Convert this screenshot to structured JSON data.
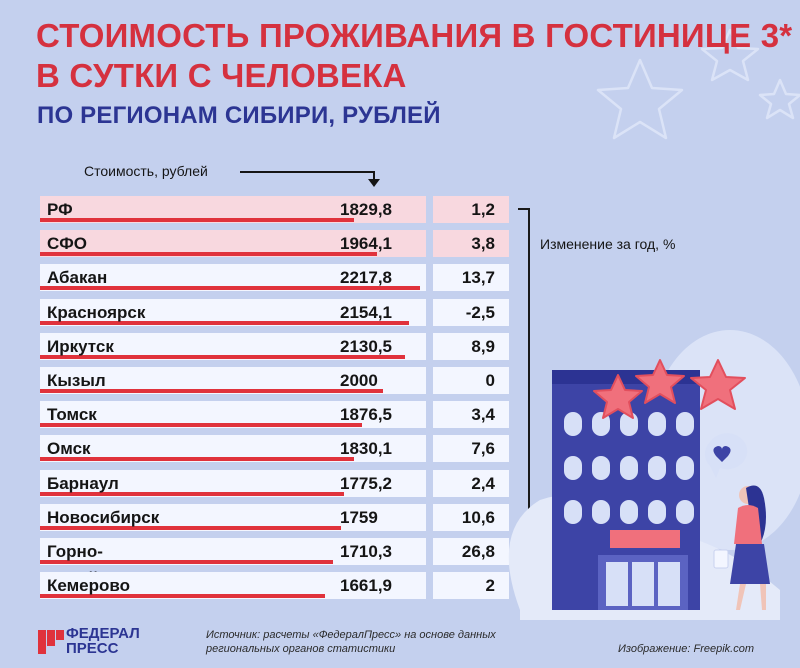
{
  "header": {
    "title_line1": "СТОИМОСТЬ ПРОЖИВАНИЯ В ГОСТИНИЦЕ 3*",
    "title_line2": "В СУТКИ С ЧЕЛОВЕКА",
    "subtitle": "ПО РЕГИОНАМ СИБИРИ, РУБЛЕЙ"
  },
  "chart_data": {
    "type": "bar",
    "title": "СТОИМОСТЬ ПРОЖИВАНИЯ В ГОСТИНИЦЕ 3* В СУТКИ С ЧЕЛОВЕКА",
    "subtitle": "ПО РЕГИОНАМ СИБИРИ, РУБЛЕЙ",
    "value_label": "Стоимость, рублей",
    "change_label": "Изменение за год, %",
    "highlight": [
      "РФ",
      "СФО"
    ],
    "rows": [
      {
        "name": "РФ",
        "value": 1829.8,
        "value_text": "1829,8",
        "change_text": "1,2"
      },
      {
        "name": "СФО",
        "value": 1964.1,
        "value_text": "1964,1",
        "change_text": "3,8"
      },
      {
        "name": "Абакан",
        "value": 2217.8,
        "value_text": "2217,8",
        "change_text": "13,7"
      },
      {
        "name": "Красноярск",
        "value": 2154.1,
        "value_text": "2154,1",
        "change_text": "-2,5"
      },
      {
        "name": "Иркутск",
        "value": 2130.5,
        "value_text": "2130,5",
        "change_text": "8,9"
      },
      {
        "name": "Кызыл",
        "value": 2000,
        "value_text": "2000",
        "change_text": "0"
      },
      {
        "name": "Томск",
        "value": 1876.5,
        "value_text": "1876,5",
        "change_text": "3,4"
      },
      {
        "name": "Омск",
        "value": 1830.1,
        "value_text": "1830,1",
        "change_text": "7,6"
      },
      {
        "name": "Барнаул",
        "value": 1775.2,
        "value_text": "1775,2",
        "change_text": "2,4"
      },
      {
        "name": "Новосибирск",
        "value": 1759,
        "value_text": "1759",
        "change_text": "10,6"
      },
      {
        "name": "Горно-Алтайск",
        "value": 1710.3,
        "value_text": "1710,3",
        "change_text": "26,8"
      },
      {
        "name": "Кемерово",
        "value": 1661.9,
        "value_text": "1661,9",
        "change_text": "2"
      }
    ],
    "colors": {
      "bar": "#e0323c",
      "title": "#d5313f",
      "subtitle": "#2c3593",
      "row": "#f3f6ff",
      "row_highlight": "#f8d8df",
      "background": "#c4d0ee"
    }
  },
  "footer": {
    "logo_line1": "ФЕДЕРАЛ",
    "logo_line2": "ПРЕСС",
    "source_line1": "Источник: расчеты «ФедералПресс» на основе данных",
    "source_line2": "региональных органов статистики",
    "credit": "Изображение: Freepik.com"
  },
  "illustration": {
    "icon": "hotel-building-with-stars-and-woman-icon"
  }
}
